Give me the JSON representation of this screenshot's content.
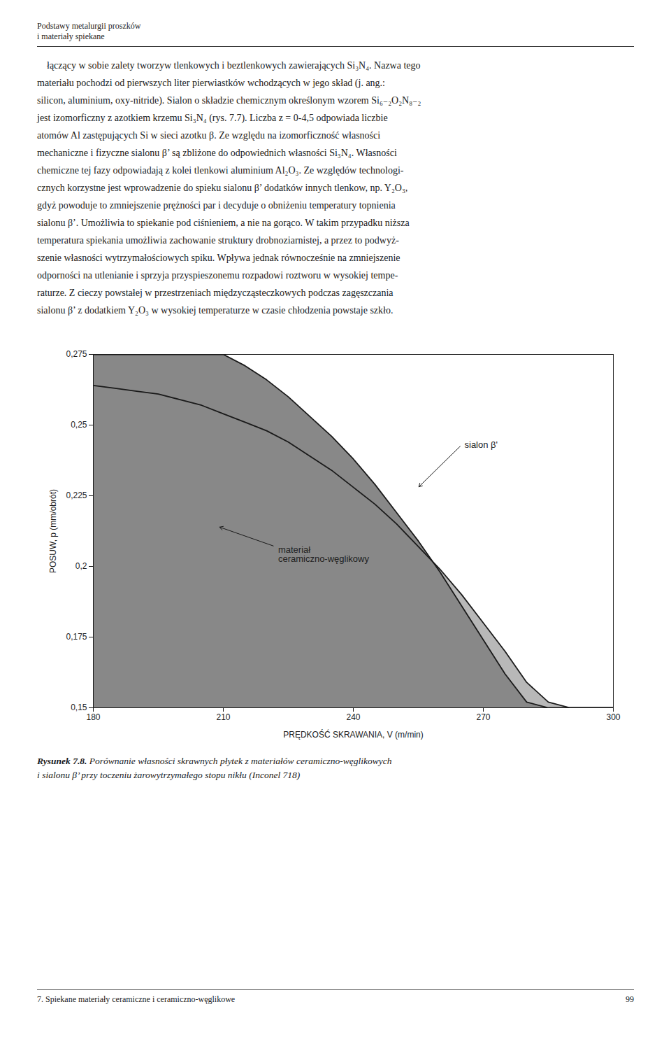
{
  "page": {
    "header": [
      "Podstawy metalurgii proszków",
      "i materiały spiekane"
    ],
    "body": [
      "    łączący w sobie zalety tworzyw tlenkowych i beztlenkowych zawierających Si₃N₄. Nazwa tego",
      "materiału pochodzi od pierwszych liter pierwiastków wchodzących w jego skład (j. ang.:",
      "silicon, aluminium, oxy-nitride). Sialon o składzie chemicznym określonym wzorem Si₆₋₂O₂N₈₋₂",
      "jest izomorficzny z azotkiem krzemu Si₃N₄ (rys. 7.7). Liczba z = 0-4,5 odpowiada liczbie",
      "atomów Al zastępujących Si w sieci azotku β. Ze względu na izomorficzność własności",
      "mechaniczne i fizyczne sialonu β’ są zbliżone do odpowiednich własności Si₃N₄. Własności",
      "chemiczne tej fazy odpowiadają z kolei tlenkowi aluminium Al₂O₃. Ze względów technologi-",
      "cznych korzystne jest wprowadzenie do spieku sialonu β’ dodatków innych tlenkow, np. Y₂O₃,",
      "gdyż powoduje to zmniejszenie prężności par i decyduje o obniżeniu temperatury topnienia",
      "sialonu β’. Umożliwia to spiekanie pod ciśnieniem, a nie na gorąco. W takim przypadku niższa",
      "temperatura spiekania umożliwia zachowanie struktury drobnoziarnistej, a przez to podwyż-",
      "szenie własności wytrzymałościowych spiku. Wpływa jednak równocześnie na zmniejszenie",
      "odporności na utlenianie i sprzyja przyspieszonemu rozpadowi roztworu w wysokiej tempe-",
      "raturze. Z cieczy powstałej w przestrzeniach międzycząsteczkowych podczas zagęszczania",
      "sialonu β’ z dodatkiem Y₂O₃ w wysokiej temperaturze w czasie chłodzenia powstaje szkło."
    ],
    "caption_label": "Rysunek 7.8.",
    "caption": [
      " Porównanie własności skrawnych płytek z materiałów ceramiczno-węglikowych",
      "i sialonu β’ przy toczeniu żarowytrzymałego stopu nikłu (Inconel 718)"
    ],
    "footer_left": "7. Spiekane materiały ceramiczne i ceramiczno-węglikowe",
    "footer_right": "99"
  },
  "chart_data": {
    "type": "area",
    "xlabel": "PRĘDKOŚĆ SKRAWANIA, V (m/min)",
    "ylabel": "POSUW, p (mm/obrót)",
    "xlim": [
      180,
      300
    ],
    "ylim": [
      0.15,
      0.275
    ],
    "xticks": [
      180,
      210,
      240,
      270,
      300
    ],
    "yticks": [
      {
        "value": 0.15,
        "label": "0,15"
      },
      {
        "value": 0.175,
        "label": "0,175"
      },
      {
        "value": 0.2,
        "label": "0,2"
      },
      {
        "value": 0.225,
        "label": "0,225"
      },
      {
        "value": 0.25,
        "label": "0,25"
      },
      {
        "value": 0.275,
        "label": "0,275"
      }
    ],
    "grid": false,
    "x": [
      180,
      185,
      190,
      195,
      200,
      205,
      210,
      215,
      220,
      225,
      230,
      235,
      240,
      245,
      250,
      255,
      260,
      265,
      270,
      275,
      280,
      285,
      290,
      295,
      300
    ],
    "series": [
      {
        "color": "#b8b8b8",
        "values": [
          0.264,
          0.263,
          0.262,
          0.261,
          0.259,
          0.257,
          0.254,
          0.251,
          0.248,
          0.244,
          0.239,
          0.234,
          0.228,
          0.222,
          0.215,
          0.207,
          0.199,
          0.19,
          0.18,
          0.17,
          0.159,
          0.152,
          0.15,
          0.15,
          0.15
        ]
      },
      {
        "color": "#888888",
        "values": [
          0.275,
          0.275,
          0.275,
          0.275,
          0.275,
          0.275,
          0.275,
          0.271,
          0.266,
          0.26,
          0.253,
          0.246,
          0.238,
          0.229,
          0.219,
          0.209,
          0.198,
          0.186,
          0.174,
          0.162,
          0.152,
          0.15,
          0.15,
          0.15,
          0.15
        ]
      }
    ],
    "annotations": [
      {
        "text": "sialon β'",
        "x": 255,
        "y": 0.228,
        "text_x": 265,
        "text_y": 0.243
      },
      {
        "text": "materiał\nceramiczno-węglikowy",
        "x": 209,
        "y": 0.214,
        "text_x": 222,
        "text_y": 0.207
      }
    ]
  }
}
